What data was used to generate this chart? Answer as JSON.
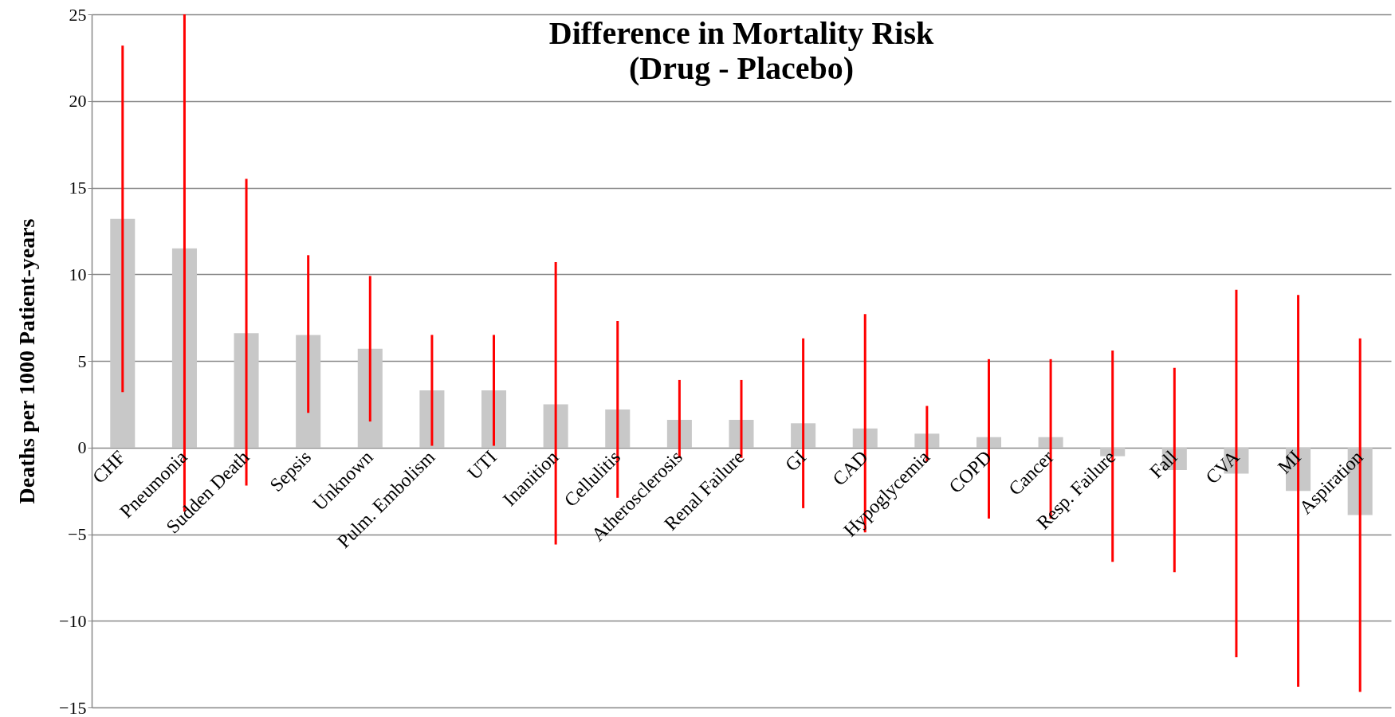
{
  "chart_data": {
    "type": "bar",
    "title": "Difference in Mortality Risk",
    "subtitle": "(Drug - Placebo)",
    "ylabel": "Deaths per 1000 Patient-years",
    "categories": [
      "CHF",
      "Pneumonia",
      "Sudden Death",
      "Sepsis",
      "Unknown",
      "Pulm. Embolism",
      "UTI",
      "Inanition",
      "Cellulitis",
      "Atherosclerosis",
      "Renal Failure",
      "GI",
      "CAD",
      "Hypoglycemia",
      "COPD",
      "Cancer",
      "Resp. Failure",
      "Fall",
      "CVA",
      "MI",
      "Aspiration"
    ],
    "values": [
      13.2,
      11.5,
      6.6,
      6.5,
      5.7,
      3.3,
      3.3,
      2.5,
      2.2,
      1.6,
      1.6,
      1.4,
      1.1,
      0.8,
      0.6,
      0.6,
      -0.5,
      -1.3,
      -1.5,
      -2.5,
      -3.9
    ],
    "errors": [
      [
        3.2,
        23.2
      ],
      [
        -3.7,
        25
      ],
      [
        -2.2,
        15.5
      ],
      [
        2.0,
        11.1
      ],
      [
        1.5,
        9.9
      ],
      [
        0.1,
        6.5
      ],
      [
        0.1,
        6.5
      ],
      [
        -5.6,
        10.7
      ],
      [
        -2.9,
        7.3
      ],
      [
        -0.6,
        3.9
      ],
      [
        -0.6,
        3.9
      ],
      [
        -3.5,
        6.3
      ],
      [
        -4.9,
        7.7
      ],
      [
        -0.8,
        2.4
      ],
      [
        -4.1,
        5.1
      ],
      [
        -4.1,
        5.1
      ],
      [
        -6.6,
        5.6
      ],
      [
        -7.2,
        4.6
      ],
      [
        -12.1,
        9.1
      ],
      [
        -13.8,
        8.8
      ],
      [
        -14.1,
        6.3
      ]
    ],
    "color": "#c8c8c8",
    "ylim": [
      -15,
      25
    ],
    "yticks": [
      -15,
      -10,
      -5,
      0,
      5,
      10,
      15,
      20,
      25
    ],
    "grid": "y"
  }
}
